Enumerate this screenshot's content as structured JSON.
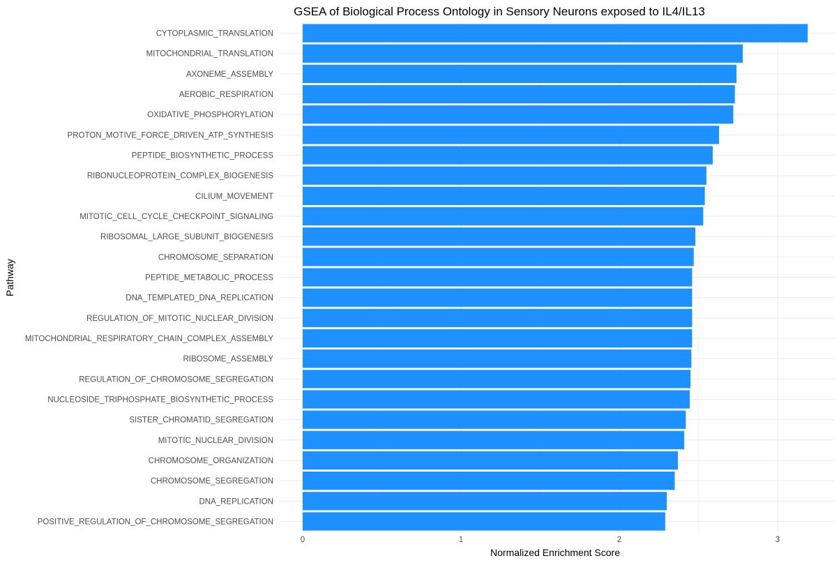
{
  "chart_data": {
    "type": "bar",
    "orientation": "horizontal",
    "title": "GSEA of Biological Process Ontology in Sensory Neurons exposed to IL4/IL13",
    "xlabel": "Normalized Enrichment Score",
    "ylabel": "Pathway",
    "xlim": [
      0,
      3.3
    ],
    "xticks": [
      0,
      1,
      2,
      3
    ],
    "grid": true,
    "bar_color": "#1E90FF",
    "categories": [
      "CYTOPLASMIC_TRANSLATION",
      "MITOCHONDRIAL_TRANSLATION",
      "AXONEME_ASSEMBLY",
      "AEROBIC_RESPIRATION",
      "OXIDATIVE_PHOSPHORYLATION",
      "PROTON_MOTIVE_FORCE_DRIVEN_ATP_SYNTHESIS",
      "PEPTIDE_BIOSYNTHETIC_PROCESS",
      "RIBONUCLEOPROTEIN_COMPLEX_BIOGENESIS",
      "CILIUM_MOVEMENT",
      "MITOTIC_CELL_CYCLE_CHECKPOINT_SIGNALING",
      "RIBOSOMAL_LARGE_SUBUNIT_BIOGENESIS",
      "CHROMOSOME_SEPARATION",
      "PEPTIDE_METABOLIC_PROCESS",
      "DNA_TEMPLATED_DNA_REPLICATION",
      "REGULATION_OF_MITOTIC_NUCLEAR_DIVISION",
      "MITOCHONDRIAL_RESPIRATORY_CHAIN_COMPLEX_ASSEMBLY",
      "RIBOSOME_ASSEMBLY",
      "REGULATION_OF_CHROMOSOME_SEGREGATION",
      "NUCLEOSIDE_TRIPHOSPHATE_BIOSYNTHETIC_PROCESS",
      "SISTER_CHROMATID_SEGREGATION",
      "MITOTIC_NUCLEAR_DIVISION",
      "CHROMOSOME_ORGANIZATION",
      "CHROMOSOME_SEGREGATION",
      "DNA_REPLICATION",
      "POSITIVE_REGULATION_OF_CHROMOSOME_SEGREGATION"
    ],
    "values": [
      3.19,
      2.78,
      2.74,
      2.73,
      2.72,
      2.63,
      2.59,
      2.55,
      2.54,
      2.53,
      2.48,
      2.47,
      2.46,
      2.46,
      2.46,
      2.46,
      2.455,
      2.45,
      2.445,
      2.42,
      2.41,
      2.37,
      2.35,
      2.3,
      2.29
    ]
  }
}
